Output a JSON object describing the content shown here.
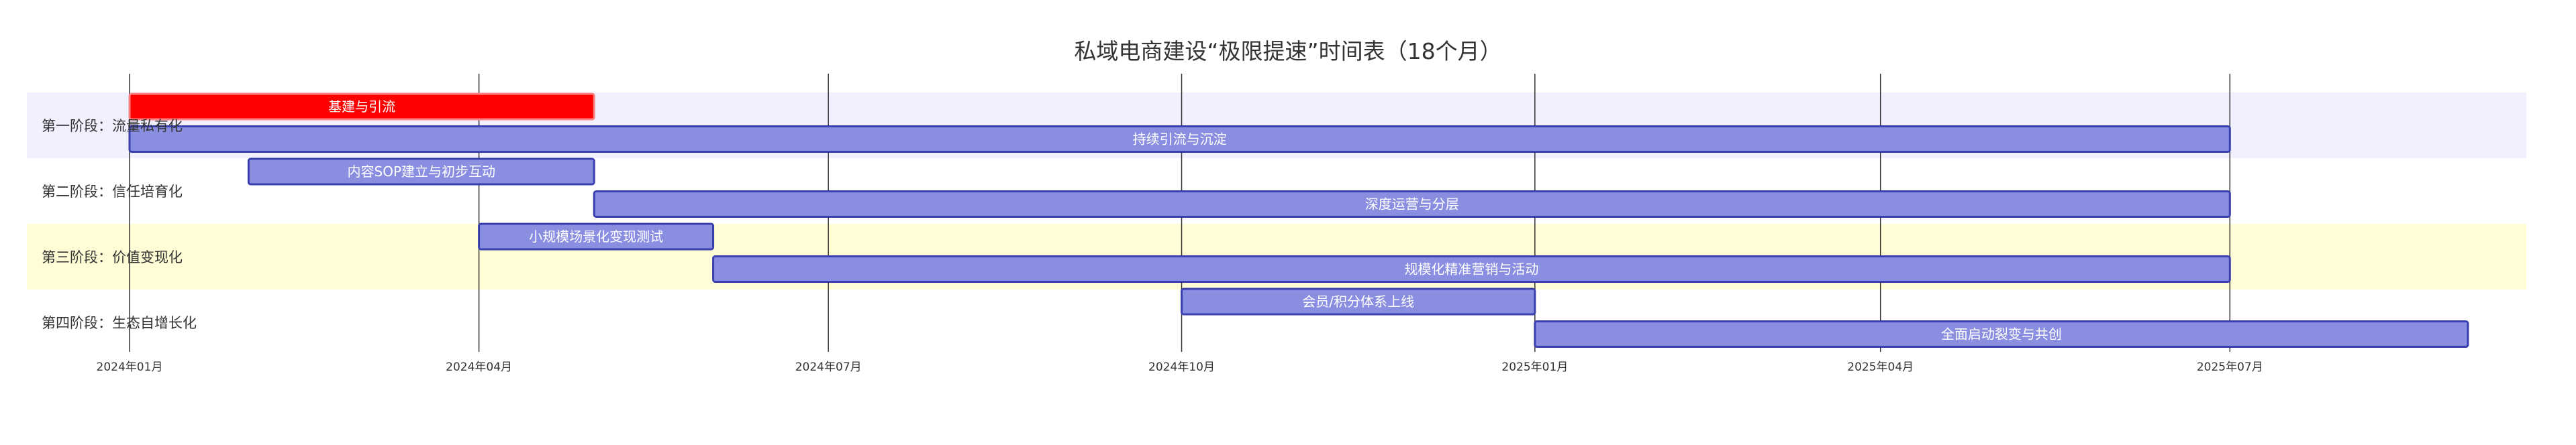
{
  "chart_data": {
    "type": "gantt",
    "title": "私域电商建设“极限提速”时间表（18个月）",
    "x_axis": {
      "min": "2024-01-01",
      "max": "2025-09-01",
      "ticks": [
        "2024-01-01",
        "2024-04-01",
        "2024-07-01",
        "2024-10-01",
        "2025-01-01",
        "2025-04-01",
        "2025-07-01"
      ],
      "tick_labels": [
        "2024年01月",
        "2024年04月",
        "2024年07月",
        "2024年10月",
        "2025年01月",
        "2025年04月",
        "2025年07月"
      ]
    },
    "grid": true,
    "sections": [
      {
        "name": "第一阶段：流量私有化",
        "band_color": "#f0f0ff"
      },
      {
        "name": "第二阶段：信任培育化",
        "band_color": "#ffffff"
      },
      {
        "name": "第三阶段：价值变现化",
        "band_color": "#fffdd6"
      },
      {
        "name": "第四阶段：生态自增长化",
        "band_color": "#ffffff"
      }
    ],
    "tasks": [
      {
        "label": "基建与引流",
        "section": 0,
        "start": "2024-01-01",
        "end": "2024-05-01",
        "critical": true
      },
      {
        "label": "持续引流与沉淀",
        "section": 0,
        "start": "2024-01-01",
        "end": "2025-07-01",
        "critical": false
      },
      {
        "label": "内容SOP建立与初步互动",
        "section": 1,
        "start": "2024-02-01",
        "end": "2024-05-01",
        "critical": false
      },
      {
        "label": "深度运营与分层",
        "section": 1,
        "start": "2024-05-01",
        "end": "2025-07-01",
        "critical": false
      },
      {
        "label": "小规模场景化变现测试",
        "section": 2,
        "start": "2024-04-01",
        "end": "2024-06-01",
        "critical": false
      },
      {
        "label": "规模化精准营销与活动",
        "section": 2,
        "start": "2024-06-01",
        "end": "2025-07-01",
        "critical": false
      },
      {
        "label": "会员/积分体系上线",
        "section": 3,
        "start": "2024-10-01",
        "end": "2025-01-01",
        "critical": false
      },
      {
        "label": "全面启动裂变与共创",
        "section": 3,
        "start": "2025-01-01",
        "end": "2025-09-01",
        "critical": false
      }
    ],
    "colors": {
      "task_fill": "#8a8ee0",
      "task_stroke": "#3a3fb0",
      "critical_fill": "#ff0000",
      "critical_stroke": "#ff8080",
      "grid": "#333333",
      "text": "#333333"
    }
  }
}
